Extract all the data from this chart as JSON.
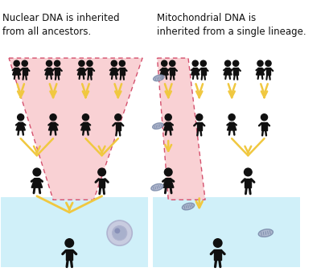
{
  "title_left": "Nuclear DNA is inherited\nfrom all ancestors.",
  "title_right": "Mitochondrial DNA is\ninherited from a single lineage.",
  "bg_color": "#ffffff",
  "light_blue_start": "#c8eef8",
  "light_blue_end": "#e8f8fc",
  "pink_fill": "#f9ccd0",
  "pink_stroke": "#d04060",
  "arrow_color": "#f0c840",
  "arrow_dark": "#c8a020",
  "person_color": "#101010",
  "cell_outer": "#b0b4d0",
  "cell_inner": "#9098c0",
  "cell_nuc": "#7880b0",
  "mito_fill": "#a8b0c8",
  "mito_edge": "#7888a8",
  "font_size": 8.5
}
